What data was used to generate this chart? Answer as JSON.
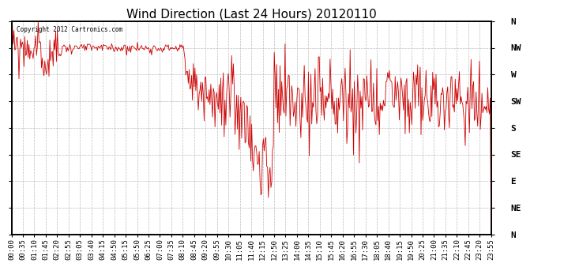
{
  "title": "Wind Direction (Last 24 Hours) 20120110",
  "copyright_text": "Copyright 2012 Cartronics.com",
  "line_color": "#cc0000",
  "background_color": "#ffffff",
  "plot_bg_color": "#ffffff",
  "grid_color": "#aaaaaa",
  "ytick_labels_right": [
    "N",
    "NW",
    "W",
    "SW",
    "S",
    "SE",
    "E",
    "NE",
    "N"
  ],
  "ytick_values": [
    360,
    315,
    270,
    225,
    180,
    135,
    90,
    45,
    0
  ],
  "ylim": [
    0,
    360
  ],
  "title_fontsize": 11,
  "tick_fontsize": 8,
  "xlabel_fontsize": 6.5,
  "xtick_labels": [
    "00:00",
    "00:35",
    "01:10",
    "01:45",
    "02:20",
    "02:55",
    "03:05",
    "03:40",
    "04:15",
    "04:50",
    "05:15",
    "05:50",
    "06:25",
    "07:00",
    "07:35",
    "08:10",
    "08:45",
    "09:20",
    "09:55",
    "10:30",
    "11:05",
    "11:40",
    "12:15",
    "12:50",
    "13:25",
    "14:00",
    "14:35",
    "15:10",
    "15:45",
    "16:20",
    "16:55",
    "17:30",
    "18:05",
    "18:40",
    "19:15",
    "19:50",
    "20:25",
    "21:00",
    "21:35",
    "22:10",
    "22:45",
    "23:20",
    "23:55"
  ],
  "n_points": 576,
  "seed": 99
}
